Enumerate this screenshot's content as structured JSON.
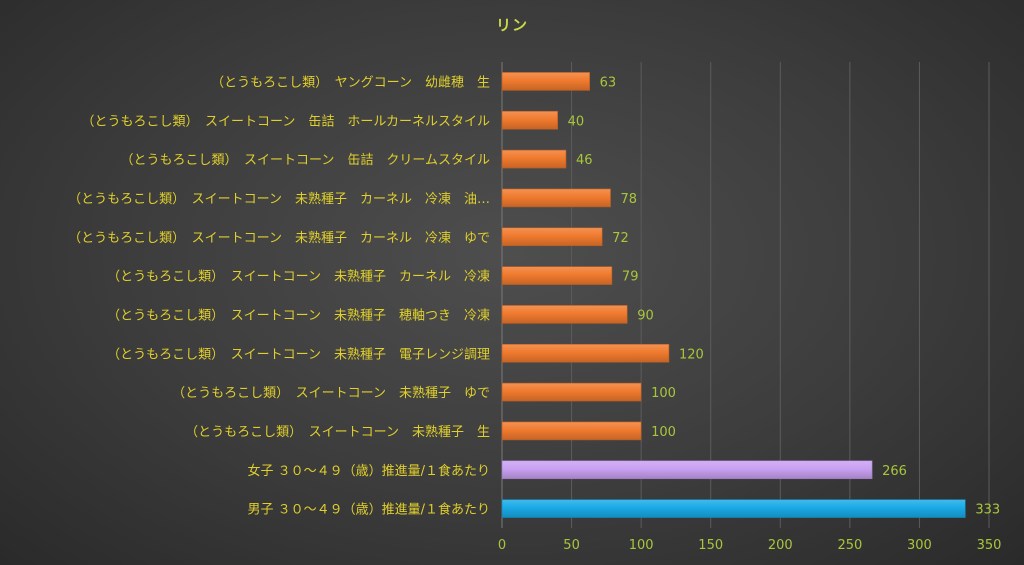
{
  "chart_data": {
    "type": "bar",
    "orientation": "horizontal",
    "title": "リン",
    "xlim": [
      0,
      350
    ],
    "x_ticks": [
      "0",
      "50",
      "100",
      "150",
      "200",
      "250",
      "300",
      "350"
    ],
    "grid": true,
    "categories": [
      "（とうもろこし類）　ヤングコーン　幼雌穂　生",
      "（とうもろこし類）　スイートコーン　缶詰　ホールカーネルスタイル",
      "（とうもろこし類）　スイートコーン　缶詰　クリームスタイル",
      "（とうもろこし類）　スイートコーン　未熟種子　カーネル　冷凍　油…",
      "（とうもろこし類）　スイートコーン　未熟種子　カーネル　冷凍　ゆで",
      "（とうもろこし類）　スイートコーン　未熟種子　カーネル　冷凍",
      "（とうもろこし類）　スイートコーン　未熟種子　穂軸つき　冷凍",
      "（とうもろこし類）　スイートコーン　未熟種子　電子レンジ調理",
      "（とうもろこし類）　スイートコーン　未熟種子　ゆで",
      "（とうもろこし類）　スイートコーン　未熟種子　生",
      "女子 ３０～４９（歳）推進量/１食あたり",
      "男子 ３０～４９（歳）推進量/１食あたり"
    ],
    "values": [
      63,
      40,
      46,
      78,
      72,
      79,
      90,
      120,
      100,
      100,
      266,
      333
    ],
    "bar_colors": [
      "#f07a2e",
      "#f07a2e",
      "#f07a2e",
      "#f07a2e",
      "#f07a2e",
      "#f07a2e",
      "#f07a2e",
      "#f07a2e",
      "#f07a2e",
      "#f07a2e",
      "#c9a0f2",
      "#1aaae6"
    ],
    "colors": {
      "label": "#e0cf2c",
      "value_label": "#a8c63c",
      "tick": "#a8c63c",
      "grid": "#5c5c5c"
    }
  }
}
